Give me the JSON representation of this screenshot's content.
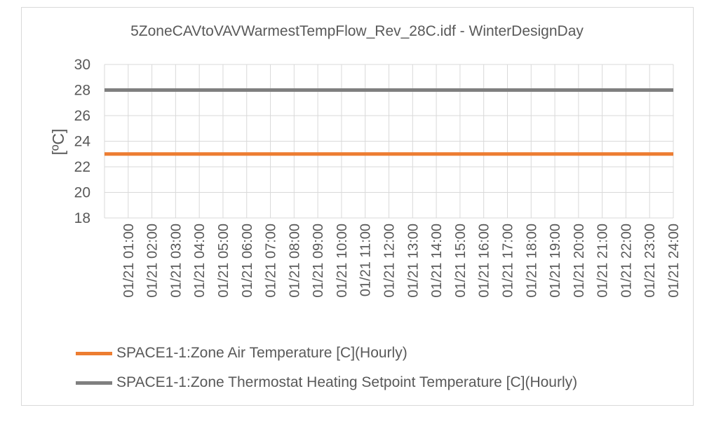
{
  "chart_data": {
    "type": "line",
    "title": "5ZoneCAVtoVAVWarmestTempFlow_Rev_28C.idf - WinterDesignDay",
    "ylabel": "[ºC]",
    "xlabel": "",
    "ylim": [
      18,
      30
    ],
    "yticks": [
      18,
      20,
      22,
      24,
      26,
      28,
      30
    ],
    "grid": true,
    "legend_position": "bottom",
    "categories": [
      "01/21  01:00",
      "01/21  02:00",
      "01/21  03:00",
      "01/21  04:00",
      "01/21  05:00",
      "01/21  06:00",
      "01/21  07:00",
      "01/21  08:00",
      "01/21  09:00",
      "01/21  10:00",
      "01/21  11:00",
      "01/21  12:00",
      "01/21  13:00",
      "01/21  14:00",
      "01/21  15:00",
      "01/21  16:00",
      "01/21  17:00",
      "01/21  18:00",
      "01/21  19:00",
      "01/21  20:00",
      "01/21  21:00",
      "01/21  22:00",
      "01/21  23:00",
      "01/21  24:00"
    ],
    "series": [
      {
        "name": "SPACE1-1:Zone Air Temperature [C](Hourly)",
        "color": "#ED7D31",
        "values": [
          23,
          23,
          23,
          23,
          23,
          23,
          23,
          23,
          23,
          23,
          23,
          23,
          23,
          23,
          23,
          23,
          23,
          23,
          23,
          23,
          23,
          23,
          23,
          23
        ]
      },
      {
        "name": "SPACE1-1:Zone Thermostat Heating Setpoint Temperature [C](Hourly)",
        "color": "#7F7F7F",
        "values": [
          28,
          28,
          28,
          28,
          28,
          28,
          28,
          28,
          28,
          28,
          28,
          28,
          28,
          28,
          28,
          28,
          28,
          28,
          28,
          28,
          28,
          28,
          28,
          28
        ]
      }
    ]
  }
}
